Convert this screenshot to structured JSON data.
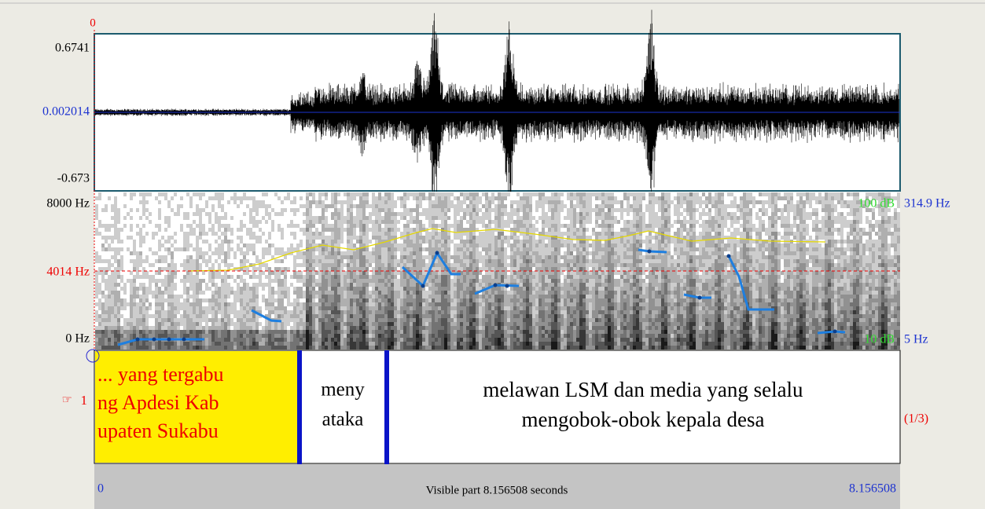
{
  "cursor": {
    "time_label": "0"
  },
  "waveform": {
    "max_label": "0.6741",
    "center_label": "0.002014",
    "min_label": "-0.673"
  },
  "spectrogram": {
    "top_label": "8000 Hz",
    "cursor_label": "4014 Hz",
    "bottom_label": "0 Hz",
    "intensity_top": "100 dB",
    "pitch_top": "314.9 Hz",
    "intensity_bottom": "10 dB",
    "pitch_bottom": "5 Hz"
  },
  "tier": {
    "icon": "☞",
    "number": "1",
    "position": "(1/3)",
    "intervals": [
      {
        "lines": [
          "... yang tergabu",
          "ng Apdesi Kab",
          "upaten Sukabu"
        ]
      },
      {
        "lines": [
          "meny",
          "ataka"
        ]
      },
      {
        "lines": [
          "melawan LSM dan media yang selalu",
          "mengobok-obok kepala desa"
        ]
      }
    ]
  },
  "footer": {
    "start": "0",
    "visible": "Visible part 8.156508 seconds",
    "end": "8.156508"
  }
}
